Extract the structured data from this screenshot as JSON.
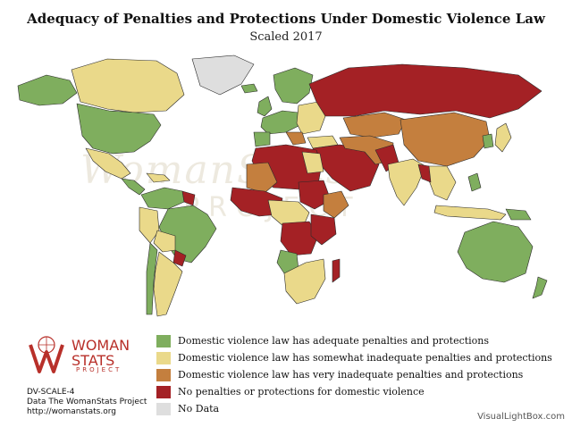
{
  "title": "Adequacy of Penalties and Protections Under Domestic Violence Law",
  "subtitle": "Scaled 2017",
  "colors": {
    "adequate": "#7fae5e",
    "somewhat": "#ead98a",
    "very": "#c47f3e",
    "none": "#a42125",
    "nodata": "#dedede",
    "border": "#2a2a2a"
  },
  "legend": [
    {
      "label": "Domestic violence law has adequate penalties and protections",
      "color": "#7fae5e"
    },
    {
      "label": "Domestic violence law has somewhat inadequate penalties and protections",
      "color": "#ead98a"
    },
    {
      "label": "Domestic violence law has very inadequate penalties and protections",
      "color": "#c47f3e"
    },
    {
      "label": "No penalties or protections for domestic violence",
      "color": "#a42125"
    },
    {
      "label": "No Data",
      "color": "#dedede"
    }
  ],
  "logo": {
    "line1": "WOMAN",
    "line2": "STATS",
    "line3": "PROJECT"
  },
  "watermark": {
    "script": "WomanStats",
    "project": "PROJECT"
  },
  "meta": {
    "code": "DV-SCALE-4",
    "source": "Data The WomanStats Project",
    "url": "http://womanstats.org"
  },
  "credit": "VisualLightBox.com"
}
